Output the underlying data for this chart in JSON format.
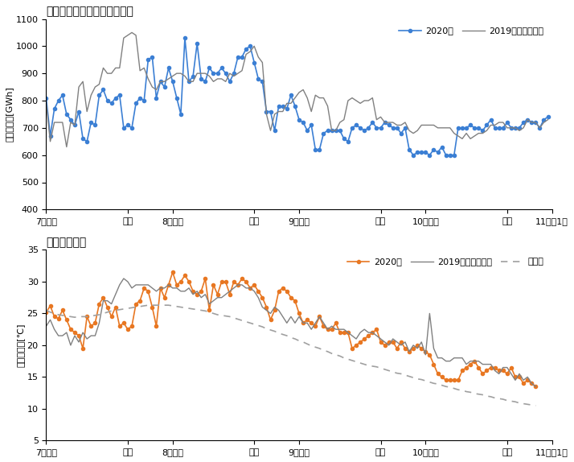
{
  "title1": "電力需要（東京電力エリア）",
  "title2": "気温（東京）",
  "ylabel1": "日合計需要[GWh]",
  "ylabel2": "日平均気温[℃]",
  "ylim1": [
    400,
    1100
  ],
  "ylim2": [
    5,
    35
  ],
  "yticks1": [
    400,
    500,
    600,
    700,
    800,
    900,
    1000,
    1100
  ],
  "yticks2": [
    5,
    10,
    15,
    20,
    25,
    30,
    35
  ],
  "xtick_labels": [
    "7月上旬",
    "下旬",
    "8月上旬",
    "下旬",
    "9月上旬",
    "下旬",
    "10月上旬",
    "下旬",
    "11月第1週"
  ],
  "xtick_pos": [
    0,
    20,
    31,
    51,
    62,
    82,
    93,
    113,
    124
  ],
  "color_2020_elec": "#3b7fd4",
  "color_2019_elec": "#808080",
  "color_2020_temp": "#e87722",
  "color_2019_temp": "#808080",
  "color_avg_temp": "#a0a0a0",
  "legend1_2020": "2020年",
  "legend1_2019": "2019年（同曜日）",
  "legend2_2020": "2020年",
  "legend2_2019": "2019年（同曜日）",
  "legend2_avg": "平年値",
  "elec_2020": [
    810,
    670,
    770,
    800,
    820,
    750,
    730,
    710,
    760,
    660,
    650,
    720,
    710,
    820,
    840,
    800,
    790,
    810,
    820,
    700,
    710,
    700,
    790,
    810,
    800,
    950,
    960,
    810,
    870,
    850,
    920,
    870,
    810,
    750,
    1030,
    870,
    890,
    1010,
    880,
    870,
    920,
    900,
    900,
    920,
    900,
    870,
    900,
    960,
    960,
    990,
    1000,
    940,
    880,
    870,
    760,
    760,
    690,
    780,
    780,
    770,
    820,
    780,
    730,
    720,
    690,
    710,
    620,
    620,
    680,
    690,
    690,
    690,
    690,
    660,
    650,
    700,
    710,
    700,
    690,
    700,
    720,
    700,
    700,
    720,
    710,
    700,
    700,
    680,
    700,
    620,
    600,
    610,
    610,
    610,
    600,
    620,
    610,
    630,
    600,
    600,
    600,
    700,
    700,
    700,
    710,
    700,
    700,
    690,
    710,
    730,
    700,
    700,
    700,
    720,
    700,
    700,
    700,
    720,
    730,
    720,
    720,
    700,
    730,
    740
  ],
  "elec_2019": [
    790,
    650,
    720,
    720,
    720,
    630,
    720,
    710,
    850,
    870,
    760,
    820,
    850,
    860,
    920,
    900,
    900,
    920,
    920,
    1030,
    1040,
    1050,
    1040,
    910,
    920,
    880,
    850,
    840,
    870,
    870,
    880,
    890,
    900,
    900,
    890,
    870,
    870,
    900,
    900,
    900,
    890,
    870,
    880,
    880,
    870,
    900,
    890,
    900,
    910,
    970,
    980,
    1000,
    960,
    940,
    750,
    690,
    750,
    760,
    760,
    790,
    790,
    810,
    830,
    840,
    810,
    760,
    820,
    810,
    810,
    780,
    690,
    690,
    720,
    730,
    800,
    810,
    800,
    790,
    800,
    800,
    810,
    730,
    740,
    720,
    720,
    720,
    710,
    710,
    720,
    690,
    680,
    690,
    710,
    710,
    710,
    710,
    700,
    700,
    700,
    700,
    680,
    670,
    660,
    680,
    660,
    670,
    680,
    680,
    690,
    710,
    710,
    720,
    720,
    700,
    700,
    700,
    690,
    700,
    730,
    720,
    720,
    700,
    720,
    730
  ],
  "temp_2020": [
    25.2,
    26.2,
    24.5,
    24.2,
    25.5,
    24.0,
    22.5,
    22.0,
    21.5,
    19.5,
    24.5,
    23.0,
    23.5,
    26.5,
    27.5,
    26.0,
    24.5,
    26.0,
    23.0,
    23.5,
    22.5,
    23.0,
    26.5,
    27.0,
    29.0,
    28.5,
    26.0,
    23.0,
    29.0,
    27.5,
    29.5,
    31.5,
    29.5,
    30.0,
    31.0,
    30.0,
    28.5,
    28.0,
    28.5,
    30.5,
    25.5,
    29.5,
    28.0,
    30.0,
    30.0,
    28.0,
    30.0,
    29.5,
    30.5,
    30.0,
    29.0,
    29.5,
    28.5,
    27.5,
    26.0,
    24.0,
    25.5,
    28.5,
    29.0,
    28.5,
    27.5,
    27.0,
    25.0,
    23.5,
    24.0,
    23.5,
    23.0,
    24.5,
    23.0,
    22.5,
    22.5,
    23.5,
    22.0,
    22.0,
    22.0,
    19.5,
    20.0,
    20.5,
    21.0,
    21.5,
    22.0,
    22.5,
    20.5,
    20.0,
    20.5,
    20.5,
    19.5,
    20.5,
    19.5,
    19.0,
    19.5,
    20.0,
    19.5,
    19.0,
    18.5,
    17.0,
    15.5,
    15.0,
    14.5,
    14.5,
    14.5,
    14.5,
    16.0,
    16.5,
    17.0,
    17.5,
    16.5,
    15.5,
    16.0,
    16.5,
    16.5,
    16.0,
    16.0,
    15.5,
    16.5,
    15.0,
    15.0,
    14.0,
    14.5,
    14.0,
    13.5
  ],
  "temp_2019": [
    23.0,
    24.0,
    22.5,
    21.5,
    21.5,
    22.0,
    20.0,
    21.5,
    20.5,
    22.0,
    21.0,
    21.5,
    21.5,
    23.5,
    27.0,
    27.0,
    26.5,
    28.0,
    29.5,
    30.5,
    30.0,
    29.0,
    29.5,
    29.5,
    29.5,
    29.5,
    29.0,
    28.5,
    29.0,
    29.0,
    29.5,
    29.0,
    29.0,
    28.5,
    28.5,
    29.0,
    28.0,
    28.5,
    27.5,
    28.0,
    26.5,
    27.0,
    27.5,
    27.5,
    28.0,
    28.5,
    29.0,
    29.5,
    29.5,
    29.0,
    29.0,
    28.5,
    27.5,
    26.0,
    25.5,
    25.0,
    26.0,
    25.5,
    24.5,
    23.5,
    24.5,
    23.5,
    24.5,
    23.5,
    23.5,
    22.5,
    23.5,
    24.5,
    23.5,
    22.5,
    23.0,
    22.5,
    22.5,
    22.5,
    22.0,
    21.5,
    21.0,
    22.0,
    22.5,
    22.0,
    22.0,
    21.5,
    21.0,
    20.5,
    20.0,
    21.0,
    20.5,
    20.0,
    20.5,
    19.0,
    20.0,
    19.5,
    20.5,
    18.5,
    25.0,
    19.5,
    18.0,
    18.0,
    17.5,
    17.5,
    18.0,
    18.0,
    18.0,
    17.0,
    17.5,
    17.5,
    17.5,
    17.0,
    17.0,
    17.0,
    16.0,
    15.5,
    16.5,
    16.5,
    15.5,
    14.5,
    15.5,
    14.5,
    15.0,
    14.0,
    13.5
  ],
  "temp_avg": [
    25.5,
    25.2,
    25.0,
    24.8,
    24.7,
    24.6,
    24.5,
    24.4,
    24.5,
    24.5,
    24.5,
    24.6,
    24.7,
    24.8,
    25.0,
    25.2,
    25.4,
    25.5,
    25.6,
    25.7,
    25.8,
    25.9,
    26.0,
    26.1,
    26.2,
    26.3,
    26.3,
    26.3,
    26.3,
    26.3,
    26.3,
    26.2,
    26.1,
    26.0,
    25.9,
    25.8,
    25.7,
    25.6,
    25.5,
    25.4,
    25.2,
    25.0,
    24.8,
    24.7,
    24.6,
    24.5,
    24.3,
    24.1,
    23.9,
    23.7,
    23.5,
    23.3,
    23.1,
    22.9,
    22.6,
    22.4,
    22.2,
    21.9,
    21.7,
    21.5,
    21.2,
    21.0,
    20.7,
    20.5,
    20.2,
    19.9,
    19.7,
    19.5,
    19.2,
    19.0,
    18.7,
    18.5,
    18.3,
    18.0,
    17.8,
    17.6,
    17.4,
    17.2,
    17.0,
    16.8,
    16.7,
    16.6,
    16.4,
    16.2,
    16.0,
    15.8,
    15.6,
    15.5,
    15.3,
    15.1,
    14.9,
    14.7,
    14.6,
    14.4,
    14.2,
    14.0,
    13.9,
    13.7,
    13.5,
    13.4,
    13.2,
    13.0,
    12.9,
    12.7,
    12.6,
    12.4,
    12.3,
    12.2,
    12.0,
    11.9,
    11.7,
    11.6,
    11.5,
    11.3,
    11.2,
    11.1,
    10.9,
    10.8,
    10.7,
    10.6,
    10.5
  ]
}
